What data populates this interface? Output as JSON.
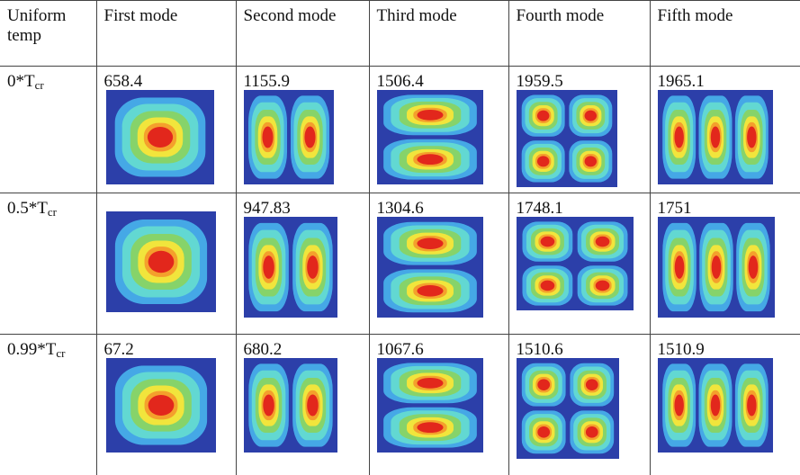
{
  "table": {
    "header": [
      "Uniform temp",
      "First mode",
      "Second mode",
      "Third mode",
      "Fourth mode",
      "Fifth mode"
    ],
    "rows": [
      {
        "label": {
          "text": "0*T",
          "sub": "cr"
        },
        "values": [
          658.4,
          1155.9,
          1506.4,
          1959.5,
          1965.1
        ]
      },
      {
        "label": {
          "text": "0.5*T",
          "sub": "cr"
        },
        "values": [
          null,
          947.83,
          1304.6,
          1748.1,
          1751
        ]
      },
      {
        "label": {
          "text": "0.99*T",
          "sub": "cr"
        },
        "values": [
          67.2,
          680.2,
          1067.6,
          1510.6,
          1510.9
        ]
      }
    ]
  }
}
